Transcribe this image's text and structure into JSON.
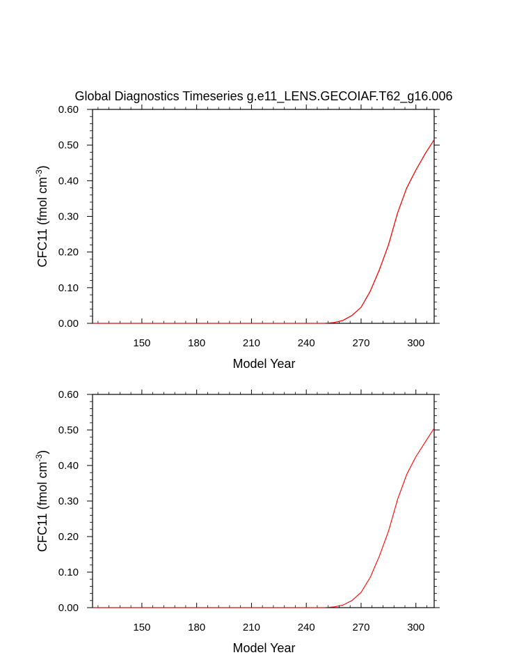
{
  "title": "Global Diagnostics Timeseries g.e11_LENS.GECOIAF.T62_g16.006",
  "chart_data": [
    {
      "type": "line",
      "xlabel": "Model Year",
      "ylabel_main": "CFC11 (fmol cm",
      "ylabel_sup": "-3",
      "ylabel_close": ")",
      "xlim": [
        123,
        310
      ],
      "ylim": [
        0,
        0.6
      ],
      "xticks": [
        150,
        180,
        210,
        240,
        270,
        300
      ],
      "yticks": [
        0.0,
        0.1,
        0.2,
        0.3,
        0.4,
        0.5,
        0.6
      ],
      "ytick_labels": [
        "0.00",
        "0.10",
        "0.20",
        "0.30",
        "0.40",
        "0.50",
        "0.60"
      ],
      "series": [
        {
          "color": "#8b0000",
          "x": [
            123,
            200,
            250,
            255,
            260,
            265,
            270,
            275,
            280,
            285,
            290,
            295,
            300,
            305,
            310
          ],
          "y": [
            0.0,
            0.0,
            0.0,
            0.002,
            0.008,
            0.022,
            0.045,
            0.09,
            0.15,
            0.22,
            0.31,
            0.38,
            0.43,
            0.475,
            0.515
          ]
        },
        {
          "color": "#ff0000",
          "x": [
            123,
            200,
            250,
            255,
            260,
            265,
            270,
            275,
            280,
            285,
            290,
            295,
            300,
            305,
            310
          ],
          "y": [
            0.0,
            0.0,
            0.0,
            0.002,
            0.008,
            0.022,
            0.045,
            0.09,
            0.15,
            0.22,
            0.31,
            0.38,
            0.43,
            0.475,
            0.515
          ]
        }
      ]
    },
    {
      "type": "line",
      "xlabel": "Model Year",
      "ylabel_main": "CFC11 (fmol cm",
      "ylabel_sup": "-3",
      "ylabel_close": ")",
      "xlim": [
        123,
        310
      ],
      "ylim": [
        0,
        0.6
      ],
      "xticks": [
        150,
        180,
        210,
        240,
        270,
        300
      ],
      "yticks": [
        0.0,
        0.1,
        0.2,
        0.3,
        0.4,
        0.5,
        0.6
      ],
      "ytick_labels": [
        "0.00",
        "0.10",
        "0.20",
        "0.30",
        "0.40",
        "0.50",
        "0.60"
      ],
      "series": [
        {
          "color": "#ff0000",
          "x": [
            123,
            200,
            250,
            255,
            260,
            265,
            270,
            275,
            280,
            285,
            290,
            295,
            300,
            305,
            310
          ],
          "y": [
            0.0,
            0.0,
            0.0,
            0.002,
            0.007,
            0.02,
            0.043,
            0.085,
            0.145,
            0.215,
            0.305,
            0.375,
            0.425,
            0.465,
            0.505
          ]
        }
      ]
    }
  ]
}
